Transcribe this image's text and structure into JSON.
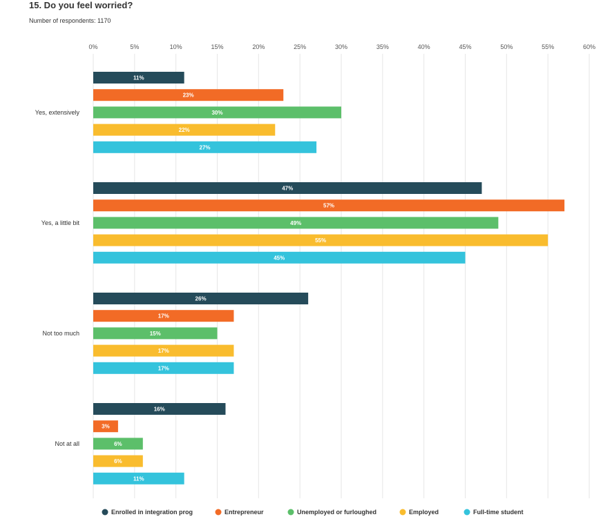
{
  "header": {
    "title": "15. Do you feel worried?",
    "subtitle": "Number of respondents: 1170"
  },
  "chart_data": {
    "type": "bar",
    "orientation": "horizontal",
    "title": "15. Do you feel worried?",
    "subtitle": "Number of respondents: 1170",
    "categories": [
      "Yes, extensively",
      "Yes, a little bit",
      "Not too much",
      "Not at all"
    ],
    "x_ticks": [
      0,
      5,
      10,
      15,
      20,
      25,
      30,
      35,
      40,
      45,
      50,
      55,
      60
    ],
    "x_tick_labels": [
      "0%",
      "5%",
      "10%",
      "15%",
      "20%",
      "25%",
      "30%",
      "35%",
      "40%",
      "45%",
      "50%",
      "55%",
      "60%"
    ],
    "xlim": [
      0,
      60
    ],
    "grid": true,
    "legend_position": "bottom",
    "series": [
      {
        "name": "Enrolled in integration prog",
        "color": "#254b5a",
        "values": [
          11,
          47,
          26,
          16
        ],
        "labels": [
          "11%",
          "47%",
          "26%",
          "16%"
        ]
      },
      {
        "name": "Entrepreneur",
        "color": "#f26b26",
        "values": [
          23,
          57,
          17,
          3
        ],
        "labels": [
          "23%",
          "57%",
          "17%",
          "3%"
        ]
      },
      {
        "name": "Unemployed or furloughed",
        "color": "#5cbf6a",
        "values": [
          30,
          49,
          15,
          6
        ],
        "labels": [
          "30%",
          "49%",
          "15%",
          "6%"
        ]
      },
      {
        "name": "Employed",
        "color": "#f9bc2e",
        "values": [
          22,
          55,
          17,
          6
        ],
        "labels": [
          "22%",
          "55%",
          "17%",
          "6%"
        ]
      },
      {
        "name": "Full-time student",
        "color": "#34c3dc",
        "values": [
          27,
          45,
          17,
          11
        ],
        "labels": [
          "27%",
          "45%",
          "17%",
          "11%"
        ]
      }
    ]
  }
}
